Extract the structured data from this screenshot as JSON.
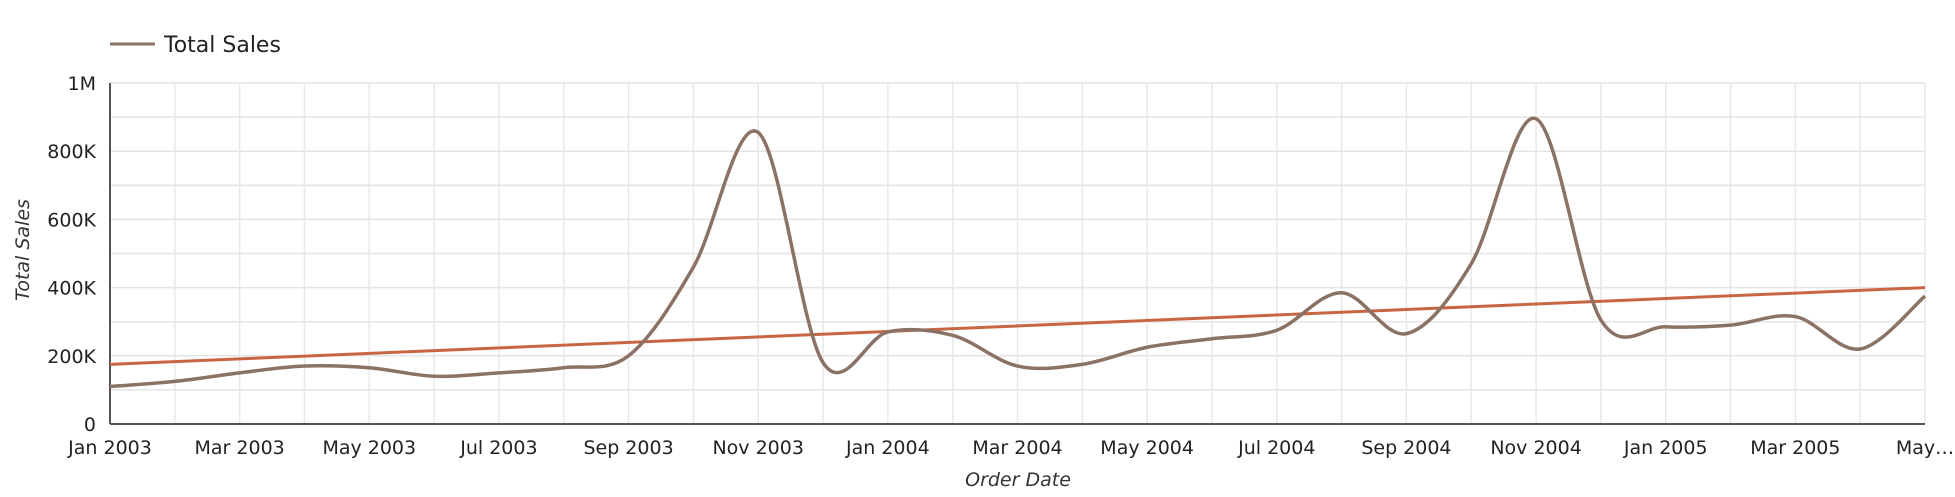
{
  "chart_data": {
    "type": "line",
    "xlabel": "Order Date",
    "ylabel": "Total Sales",
    "ylim": [
      0,
      1000000
    ],
    "y_ticks": [
      "0",
      "200K",
      "400K",
      "600K",
      "800K",
      "1M"
    ],
    "x_ticks": [
      "Jan 2003",
      "Mar 2003",
      "May 2003",
      "Jul 2003",
      "Sep 2003",
      "Nov 2003",
      "Jan 2004",
      "Mar 2004",
      "May 2004",
      "Jul 2004",
      "Sep 2004",
      "Nov 2004",
      "Jan 2005",
      "Mar 2005",
      "May…"
    ],
    "legend": {
      "position": "top-left",
      "label": "Total Sales"
    },
    "grid": true,
    "x": [
      "Jan 2003",
      "Feb 2003",
      "Mar 2003",
      "Apr 2003",
      "May 2003",
      "Jun 2003",
      "Jul 2003",
      "Aug 2003",
      "Sep 2003",
      "Oct 2003",
      "Nov 2003",
      "Dec 2003",
      "Jan 2004",
      "Feb 2004",
      "Mar 2004",
      "Apr 2004",
      "May 2004",
      "Jun 2004",
      "Jul 2004",
      "Aug 2004",
      "Sep 2004",
      "Oct 2004",
      "Nov 2004",
      "Dec 2004",
      "Jan 2005",
      "Feb 2005",
      "Mar 2005",
      "Apr 2005",
      "May 2005"
    ],
    "series": [
      {
        "name": "Total Sales",
        "color": "#8a7264",
        "values": [
          110000,
          125000,
          150000,
          170000,
          165000,
          140000,
          150000,
          165000,
          200000,
          460000,
          855000,
          180000,
          270000,
          260000,
          170000,
          175000,
          225000,
          250000,
          275000,
          385000,
          265000,
          470000,
          895000,
          305000,
          285000,
          290000,
          315000,
          220000,
          375000
        ]
      }
    ],
    "trendline": {
      "color": "#c86644",
      "start": 175000,
      "end": 400000
    }
  }
}
